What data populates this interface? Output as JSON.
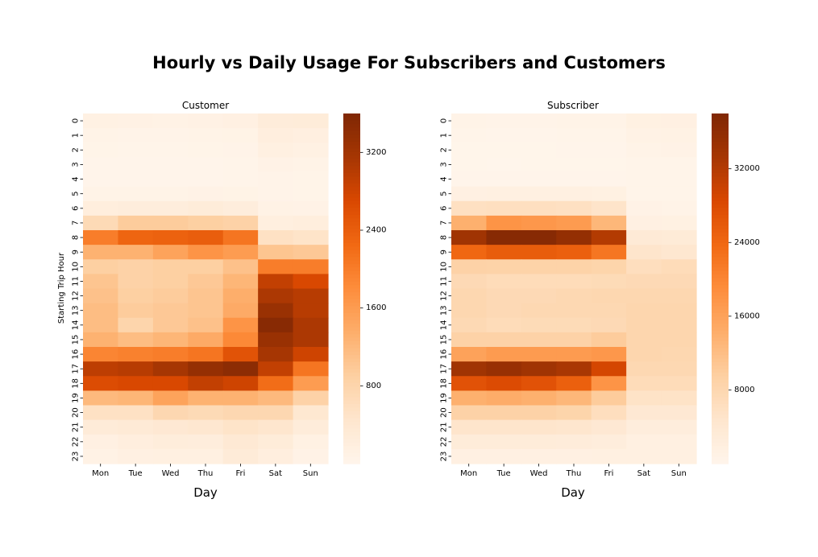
{
  "figure": {
    "title": "Hourly vs Daily Usage For Subscribers and Customers",
    "colormap": [
      "#fff5eb",
      "#fee6ce",
      "#fdd0a2",
      "#fdae6b",
      "#fd8d3c",
      "#f16913",
      "#d94801",
      "#a63603",
      "#7f2704"
    ]
  },
  "chart_data": [
    {
      "type": "heatmap",
      "title": "Customer",
      "xlabel": "Day",
      "ylabel": "Starting Trip Hour",
      "x": [
        "Mon",
        "Tue",
        "Wed",
        "Thu",
        "Fri",
        "Sat",
        "Sun"
      ],
      "y": [
        "0",
        "1",
        "2",
        "3",
        "4",
        "5",
        "6",
        "7",
        "8",
        "9",
        "10",
        "11",
        "12",
        "13",
        "14",
        "15",
        "16",
        "17",
        "18",
        "19",
        "20",
        "21",
        "22",
        "23"
      ],
      "vmin": 0,
      "vmax": 3600,
      "colorbar_ticks": [
        800,
        1600,
        2400,
        3200
      ],
      "values": [
        [
          120,
          110,
          100,
          110,
          140,
          260,
          280
        ],
        [
          60,
          50,
          50,
          60,
          70,
          200,
          170
        ],
        [
          40,
          30,
          30,
          40,
          50,
          150,
          130
        ],
        [
          20,
          20,
          20,
          20,
          30,
          80,
          60
        ],
        [
          20,
          20,
          20,
          20,
          30,
          50,
          40
        ],
        [
          60,
          60,
          60,
          80,
          70,
          50,
          40
        ],
        [
          220,
          240,
          240,
          280,
          230,
          90,
          80
        ],
        [
          700,
          950,
          950,
          900,
          850,
          190,
          220
        ],
        [
          2000,
          2300,
          2350,
          2400,
          2100,
          550,
          500
        ],
        [
          1300,
          1300,
          1500,
          1700,
          1600,
          1050,
          1000
        ],
        [
          900,
          850,
          900,
          900,
          1100,
          2000,
          2000
        ],
        [
          1050,
          850,
          900,
          1000,
          1250,
          2900,
          2700
        ],
        [
          1100,
          900,
          950,
          1050,
          1350,
          3100,
          3000
        ],
        [
          1150,
          950,
          1000,
          1050,
          1400,
          3300,
          3000
        ],
        [
          1150,
          800,
          1000,
          1100,
          1700,
          3500,
          3100
        ],
        [
          1300,
          1150,
          1250,
          1400,
          1850,
          3300,
          3100
        ],
        [
          1900,
          1950,
          2000,
          2100,
          2550,
          3150,
          2800
        ],
        [
          2950,
          3000,
          3150,
          3350,
          3450,
          2900,
          2100
        ],
        [
          2650,
          2700,
          2700,
          2900,
          2800,
          2200,
          1600
        ],
        [
          1200,
          1250,
          1500,
          1300,
          1300,
          1200,
          850
        ],
        [
          550,
          550,
          750,
          700,
          750,
          750,
          400
        ],
        [
          300,
          320,
          380,
          420,
          500,
          450,
          260
        ],
        [
          140,
          200,
          250,
          240,
          360,
          280,
          120
        ],
        [
          90,
          140,
          160,
          160,
          300,
          200,
          80
        ]
      ]
    },
    {
      "type": "heatmap",
      "title": "Subscriber",
      "xlabel": "Day",
      "ylabel": "",
      "x": [
        "Mon",
        "Tue",
        "Wed",
        "Thu",
        "Fri",
        "Sat",
        "Sun"
      ],
      "y": [
        "0",
        "1",
        "2",
        "3",
        "4",
        "5",
        "6",
        "7",
        "8",
        "9",
        "10",
        "11",
        "12",
        "13",
        "14",
        "15",
        "16",
        "17",
        "18",
        "19",
        "20",
        "21",
        "22",
        "23"
      ],
      "vmin": 0,
      "vmax": 38000,
      "colorbar_ticks": [
        8000,
        16000,
        24000,
        32000
      ],
      "values": [
        [
          600,
          500,
          550,
          600,
          700,
          1400,
          1500
        ],
        [
          250,
          200,
          220,
          260,
          320,
          1000,
          1100
        ],
        [
          150,
          120,
          130,
          160,
          200,
          700,
          800
        ],
        [
          100,
          80,
          90,
          100,
          120,
          350,
          400
        ],
        [
          200,
          180,
          200,
          210,
          220,
          250,
          250
        ],
        [
          1500,
          1600,
          1650,
          1600,
          1400,
          350,
          300
        ],
        [
          6000,
          6300,
          6300,
          6000,
          5200,
          800,
          700
        ],
        [
          14000,
          18000,
          17500,
          17000,
          13000,
          1500,
          1400
        ],
        [
          34000,
          37000,
          37000,
          35500,
          32000,
          3500,
          3200
        ],
        [
          24000,
          25500,
          25500,
          25000,
          22000,
          5000,
          4500
        ],
        [
          9000,
          8800,
          8800,
          8800,
          8500,
          6500,
          7000
        ],
        [
          7500,
          7000,
          7000,
          7000,
          7200,
          7500,
          7500
        ],
        [
          8000,
          7500,
          7500,
          7800,
          8000,
          8000,
          8000
        ],
        [
          8000,
          7500,
          7800,
          7800,
          7800,
          8200,
          8200
        ],
        [
          7600,
          7000,
          7200,
          7200,
          7500,
          8200,
          8200
        ],
        [
          9000,
          9000,
          9000,
          9000,
          10000,
          8200,
          8200
        ],
        [
          16000,
          17000,
          17000,
          17000,
          17500,
          8200,
          8000
        ],
        [
          34000,
          35000,
          34000,
          33000,
          29000,
          7800,
          7800
        ],
        [
          27000,
          28000,
          27000,
          25000,
          18000,
          7000,
          7000
        ],
        [
          14000,
          14500,
          14000,
          13000,
          10000,
          5500,
          5500
        ],
        [
          9000,
          9000,
          9000,
          8500,
          6500,
          4000,
          4000
        ],
        [
          5000,
          5000,
          5000,
          4800,
          4000,
          2500,
          2500
        ],
        [
          3000,
          3000,
          3000,
          2800,
          2500,
          1600,
          1600
        ],
        [
          1500,
          1500,
          1500,
          1500,
          1700,
          1700,
          1700
        ]
      ]
    }
  ]
}
